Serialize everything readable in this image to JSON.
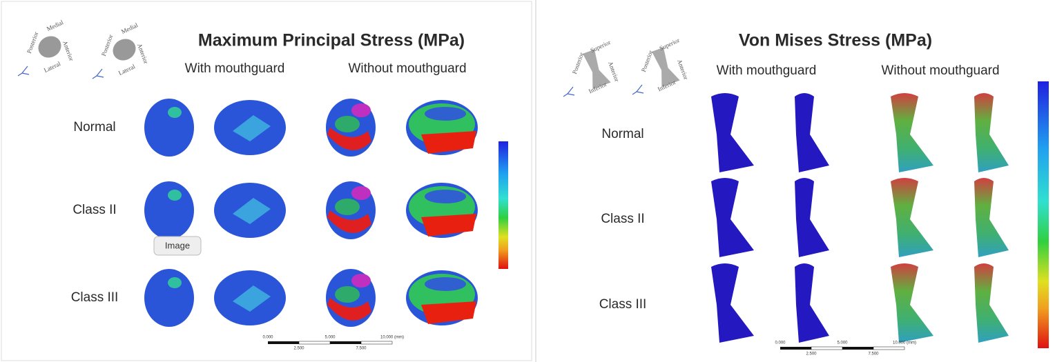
{
  "left_panel": {
    "title": "Maximum Principal Stress (MPa)",
    "columns": [
      "With mouthguard",
      "Without mouthguard"
    ],
    "rows": [
      "Normal",
      "Class II",
      "Class III"
    ],
    "orientation_labels": [
      "Medial",
      "Posterior",
      "Anterior",
      "Lateral"
    ],
    "scale_labels": [
      "0.000",
      "2.500",
      "5.000",
      "7.500",
      "10.000 (mm)"
    ]
  },
  "right_panel": {
    "title": "Von Mises Stress (MPa)",
    "columns": [
      "With mouthguard",
      "Without mouthguard"
    ],
    "rows": [
      "Normal",
      "Class II",
      "Class III"
    ],
    "orientation_labels": [
      "Superior",
      "Posterior",
      "Anterior",
      "Inferior"
    ],
    "scale_labels": [
      "0.000",
      "2.500",
      "5.000",
      "7.500",
      "10.000 (mm)"
    ]
  },
  "tooltip": "Image"
}
